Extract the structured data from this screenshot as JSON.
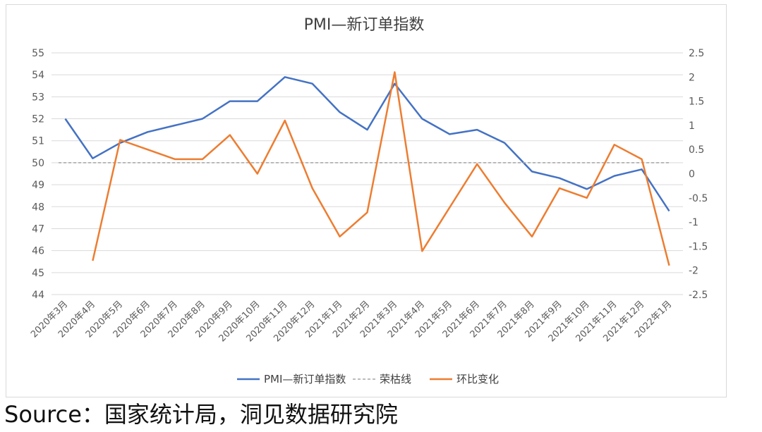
{
  "source": "Source：国家统计局，洞见数据研究院",
  "chart_data": {
    "type": "line",
    "title": "PMI—新订单指数",
    "categories": [
      "2020年3月",
      "2020年4月",
      "2020年5月",
      "2020年6月",
      "2020年7月",
      "2020年8月",
      "2020年9月",
      "2020年10月",
      "2020年11月",
      "2020年12月",
      "2021年1月",
      "2021年2月",
      "2021年3月",
      "2021年4月",
      "2021年5月",
      "2021年6月",
      "2021年7月",
      "2021年8月",
      "2021年9月",
      "2021年10月",
      "2021年11月",
      "2021年12月",
      "2022年1月"
    ],
    "y_left": {
      "min": 44,
      "max": 55,
      "ticks": [
        "44",
        "45",
        "46",
        "47",
        "48",
        "49",
        "50",
        "51",
        "52",
        "53",
        "54",
        "55"
      ]
    },
    "y_right": {
      "min": -2.5,
      "max": 2.5,
      "ticks": [
        "-2.5",
        "-2",
        "-1.5",
        "-1",
        "-0.5",
        "0",
        "0.5",
        "1",
        "1.5",
        "2",
        "2.5"
      ]
    },
    "grid": true,
    "legend_position": "bottom",
    "series": [
      {
        "name": "PMI—新订单指数",
        "axis": "left",
        "color": "#4472C4",
        "style": "solid",
        "values": [
          52.0,
          50.2,
          50.9,
          51.4,
          51.7,
          52.0,
          52.8,
          52.8,
          53.9,
          53.6,
          52.3,
          51.5,
          53.6,
          52.0,
          51.3,
          51.5,
          50.9,
          49.6,
          49.3,
          48.8,
          49.4,
          49.7,
          47.8
        ]
      },
      {
        "name": "荣枯线",
        "axis": "left",
        "color": "#A5A5A5",
        "style": "dashed",
        "values": [
          50,
          50,
          50,
          50,
          50,
          50,
          50,
          50,
          50,
          50,
          50,
          50,
          50,
          50,
          50,
          50,
          50,
          50,
          50,
          50,
          50,
          50,
          50
        ]
      },
      {
        "name": "环比变化",
        "axis": "right",
        "color": "#ED7D31",
        "style": "solid",
        "values": [
          null,
          -1.8,
          0.7,
          0.5,
          0.3,
          0.3,
          0.8,
          0.0,
          1.1,
          -0.3,
          -1.3,
          -0.8,
          2.1,
          -1.6,
          -0.7,
          0.2,
          -0.6,
          -1.3,
          -0.3,
          -0.5,
          0.6,
          0.3,
          -1.9
        ]
      }
    ]
  }
}
